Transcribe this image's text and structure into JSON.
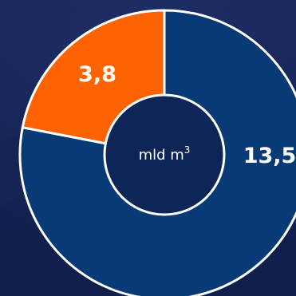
{
  "colors": {
    "background_top": "#1c2a63",
    "background_bottom": "#0f1d4a",
    "slice_primary": "#083a75",
    "slice_accent": "#ff6200",
    "hole": "#0e2558",
    "ring": "#ffffff"
  },
  "chart_data": {
    "type": "pie",
    "style": "donut",
    "categories": [
      "",
      ""
    ],
    "values": [
      13.5,
      3.8
    ],
    "value_labels": [
      "13,5",
      "3,8"
    ],
    "center_label": {
      "text": "mld m",
      "superscript": "3"
    },
    "title": "",
    "legend": "none"
  }
}
